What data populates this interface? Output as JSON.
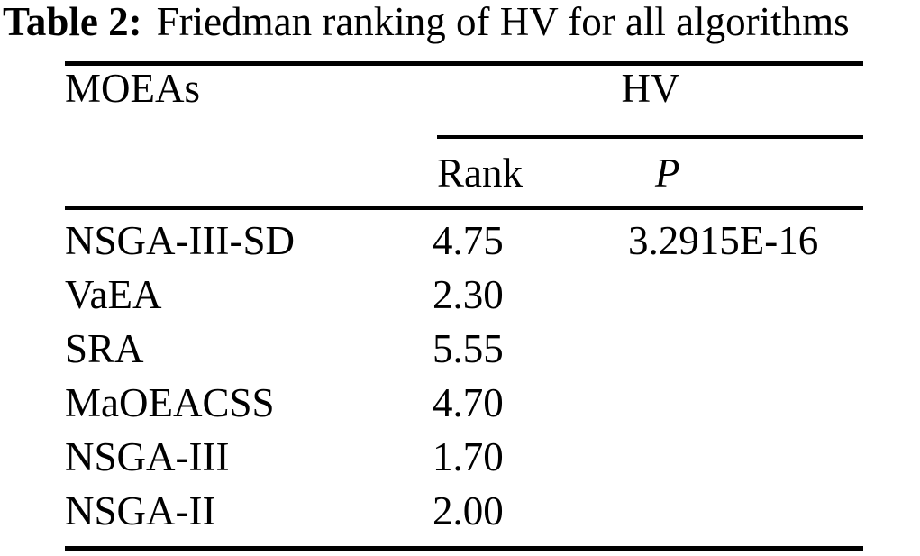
{
  "caption": {
    "label": "Table 2:",
    "text": "Friedman ranking of HV for all algorithms"
  },
  "table": {
    "headers": {
      "moeas": "MOEAs",
      "group": "HV",
      "rank": "Rank",
      "p": "P"
    },
    "rows": [
      {
        "moea": "NSGA-III-SD",
        "rank": "4.75",
        "p": "3.2915E-16"
      },
      {
        "moea": "VaEA",
        "rank": "2.30",
        "p": ""
      },
      {
        "moea": "SRA",
        "rank": "5.55",
        "p": ""
      },
      {
        "moea": "MaOEACSS",
        "rank": "4.70",
        "p": ""
      },
      {
        "moea": "NSGA-III",
        "rank": "1.70",
        "p": ""
      },
      {
        "moea": "NSGA-II",
        "rank": "2.00",
        "p": ""
      }
    ]
  },
  "colors": {
    "text": "#000000",
    "background": "#ffffff",
    "rules": "#000000"
  }
}
